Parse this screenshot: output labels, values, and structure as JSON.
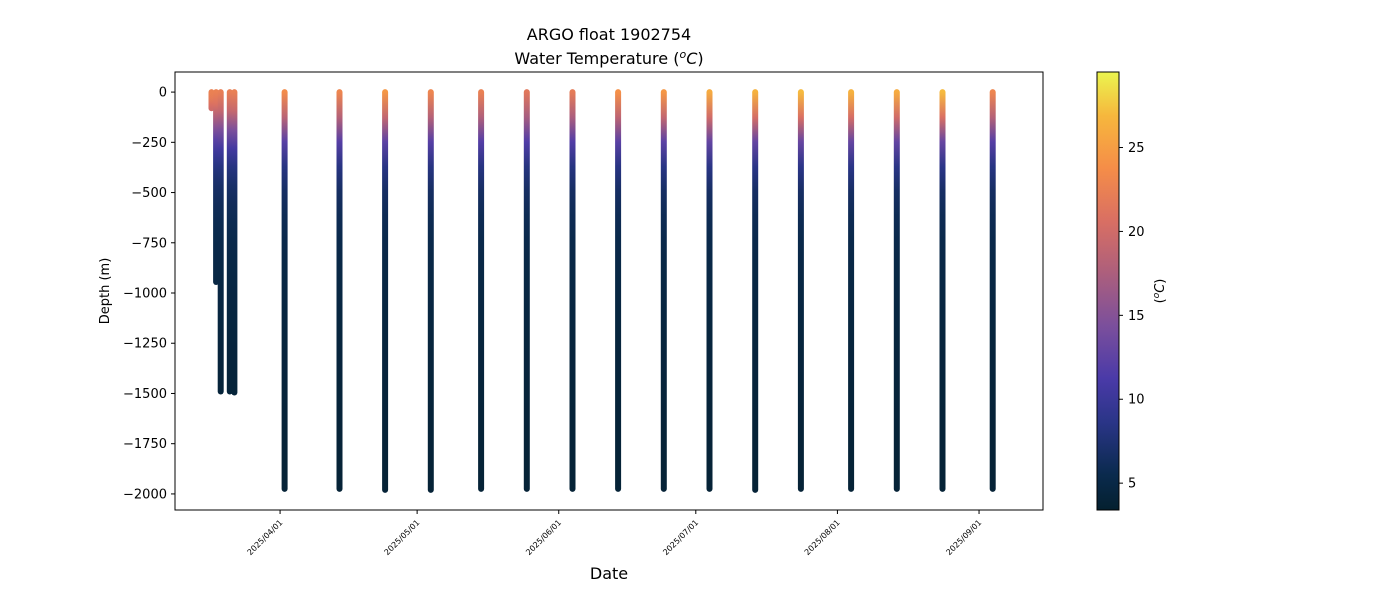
{
  "chart_data": {
    "type": "scatter",
    "title": "ARGO float 1902754",
    "subtitle": "Water Temperature ($^oC$)",
    "subtitle_main": "Water Temperature (",
    "subtitle_unit_base": "C",
    "subtitle_unit_sup": "o",
    "subtitle_close": ")",
    "xlabel": "Date",
    "ylabel": "Depth (m)",
    "colorbar_label_base": "C",
    "colorbar_label_sup": "o",
    "colorbar_label_open": "(",
    "colorbar_label_close": ")",
    "colormap": "thermal",
    "colormap_stops": [
      {
        "t": 0.0,
        "color": "#04202f"
      },
      {
        "t": 0.08,
        "color": "#0a2a4d"
      },
      {
        "t": 0.2,
        "color": "#2a3587"
      },
      {
        "t": 0.3,
        "color": "#4a3aa8"
      },
      {
        "t": 0.42,
        "color": "#7b4f9c"
      },
      {
        "t": 0.55,
        "color": "#b0607a"
      },
      {
        "t": 0.66,
        "color": "#d96f63"
      },
      {
        "t": 0.78,
        "color": "#f58d48"
      },
      {
        "t": 0.9,
        "color": "#f6b73d"
      },
      {
        "t": 1.0,
        "color": "#ebf54f"
      }
    ],
    "color_range": [
      3.4,
      29.5
    ],
    "colorbar_ticks": [
      5,
      10,
      15,
      20,
      25
    ],
    "x_range": [
      "2025-03-09",
      "2025-09-15"
    ],
    "y_range": [
      -2080,
      100
    ],
    "x_ticks": [
      "2025/04/01",
      "2025/05/01",
      "2025/06/01",
      "2025/07/01",
      "2025/08/01",
      "2025/09/01"
    ],
    "y_ticks": [
      0,
      -250,
      -500,
      -750,
      -1000,
      -1250,
      -1500,
      -1750,
      -2000
    ],
    "profiles": [
      {
        "date": "2025-03-17",
        "max_depth": -80,
        "surface_temp": 22.5
      },
      {
        "date": "2025-03-18",
        "max_depth": -945,
        "surface_temp": 22.5
      },
      {
        "date": "2025-03-19",
        "max_depth": -1490,
        "surface_temp": 22.3
      },
      {
        "date": "2025-03-21",
        "max_depth": -1490,
        "surface_temp": 22.3
      },
      {
        "date": "2025-03-22",
        "max_depth": -1495,
        "surface_temp": 22.4
      },
      {
        "date": "2025-04-02",
        "max_depth": -1975,
        "surface_temp": 23.5
      },
      {
        "date": "2025-04-14",
        "max_depth": -1975,
        "surface_temp": 23.0
      },
      {
        "date": "2025-04-24",
        "max_depth": -1980,
        "surface_temp": 24.5
      },
      {
        "date": "2025-05-04",
        "max_depth": -1980,
        "surface_temp": 23.0
      },
      {
        "date": "2025-05-15",
        "max_depth": -1975,
        "surface_temp": 22.5
      },
      {
        "date": "2025-05-25",
        "max_depth": -1975,
        "surface_temp": 21.5
      },
      {
        "date": "2025-06-04",
        "max_depth": -1975,
        "surface_temp": 22.0
      },
      {
        "date": "2025-06-14",
        "max_depth": -1975,
        "surface_temp": 24.0
      },
      {
        "date": "2025-06-24",
        "max_depth": -1975,
        "surface_temp": 24.5
      },
      {
        "date": "2025-07-04",
        "max_depth": -1975,
        "surface_temp": 26.0
      },
      {
        "date": "2025-07-14",
        "max_depth": -1980,
        "surface_temp": 26.5
      },
      {
        "date": "2025-07-24",
        "max_depth": -1975,
        "surface_temp": 27.0
      },
      {
        "date": "2025-08-04",
        "max_depth": -1975,
        "surface_temp": 26.5
      },
      {
        "date": "2025-08-14",
        "max_depth": -1975,
        "surface_temp": 26.0
      },
      {
        "date": "2025-08-24",
        "max_depth": -1975,
        "surface_temp": 27.0
      },
      {
        "date": "2025-09-04",
        "max_depth": -1975,
        "surface_temp": 23.0
      }
    ],
    "grid": false,
    "legend": "none"
  }
}
